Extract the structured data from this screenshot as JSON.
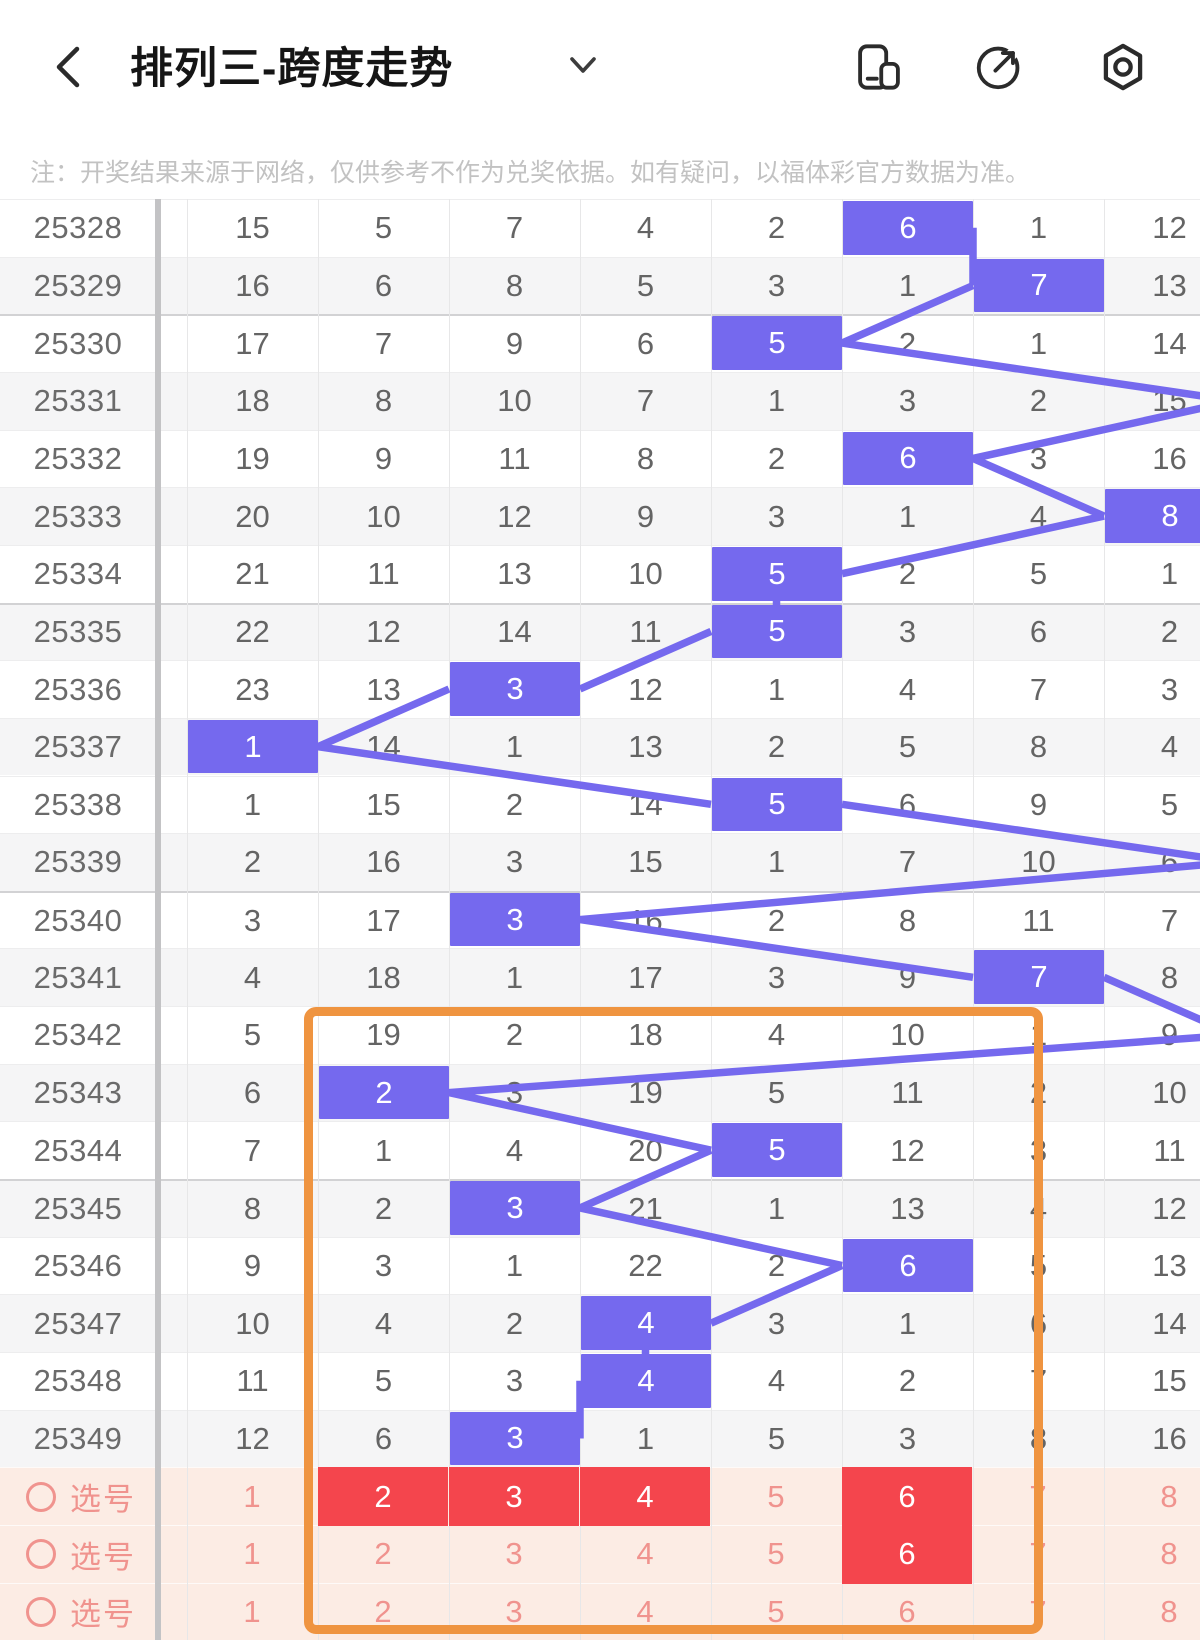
{
  "header": {
    "title": "排列三-跨度走势",
    "icons": [
      "back-icon",
      "dropdown-caret-icon",
      "floating-window-icon",
      "share-icon",
      "security-nut-icon"
    ]
  },
  "notice": {
    "text": "注：开奖结果来源于网络，仅供参考不作为兑奖依据。如有疑问，以福体彩官方数据为准。"
  },
  "chart_data": {
    "type": "table",
    "title": "排列三-跨度走势 (Pailie-3 span trend: miss counts per span column 1-8, highlighted cell = drawn span; span_col 9 means the hit is in the off-screen column to the right)",
    "visible_span_columns": [
      "1",
      "2",
      "3",
      "4",
      "5",
      "6",
      "7",
      "8"
    ],
    "rows": [
      {
        "period": "25328",
        "values": [
          15,
          5,
          7,
          4,
          2,
          6,
          1,
          12
        ],
        "span_col": 6
      },
      {
        "period": "25329",
        "values": [
          16,
          6,
          8,
          5,
          3,
          1,
          7,
          13
        ],
        "span_col": 7
      },
      {
        "period": "25330",
        "values": [
          17,
          7,
          9,
          6,
          5,
          2,
          1,
          14
        ],
        "span_col": 5
      },
      {
        "period": "25331",
        "values": [
          18,
          8,
          10,
          7,
          1,
          3,
          2,
          15
        ],
        "span_col": 9
      },
      {
        "period": "25332",
        "values": [
          19,
          9,
          11,
          8,
          2,
          6,
          3,
          16
        ],
        "span_col": 6
      },
      {
        "period": "25333",
        "values": [
          20,
          10,
          12,
          9,
          3,
          1,
          4,
          8
        ],
        "span_col": 8
      },
      {
        "period": "25334",
        "values": [
          21,
          11,
          13,
          10,
          5,
          2,
          5,
          1
        ],
        "span_col": 5
      },
      {
        "period": "25335",
        "values": [
          22,
          12,
          14,
          11,
          5,
          3,
          6,
          2
        ],
        "span_col": 5
      },
      {
        "period": "25336",
        "values": [
          23,
          13,
          3,
          12,
          1,
          4,
          7,
          3
        ],
        "span_col": 3
      },
      {
        "period": "25337",
        "values": [
          1,
          14,
          1,
          13,
          2,
          5,
          8,
          4
        ],
        "span_col": 1
      },
      {
        "period": "25338",
        "values": [
          1,
          15,
          2,
          14,
          5,
          6,
          9,
          5
        ],
        "span_col": 5
      },
      {
        "period": "25339",
        "values": [
          2,
          16,
          3,
          15,
          1,
          7,
          10,
          6
        ],
        "span_col": 9
      },
      {
        "period": "25340",
        "values": [
          3,
          17,
          3,
          16,
          2,
          8,
          11,
          7
        ],
        "span_col": 3
      },
      {
        "period": "25341",
        "values": [
          4,
          18,
          1,
          17,
          3,
          9,
          7,
          8
        ],
        "span_col": 7
      },
      {
        "period": "25342",
        "values": [
          5,
          19,
          2,
          18,
          4,
          10,
          1,
          9
        ],
        "span_col": 9
      },
      {
        "period": "25343",
        "values": [
          6,
          2,
          3,
          19,
          5,
          11,
          2,
          10
        ],
        "span_col": 2
      },
      {
        "period": "25344",
        "values": [
          7,
          1,
          4,
          20,
          5,
          12,
          3,
          11
        ],
        "span_col": 5
      },
      {
        "period": "25345",
        "values": [
          8,
          2,
          3,
          21,
          1,
          13,
          4,
          12
        ],
        "span_col": 3
      },
      {
        "period": "25346",
        "values": [
          9,
          3,
          1,
          22,
          2,
          6,
          5,
          13
        ],
        "span_col": 6
      },
      {
        "period": "25347",
        "values": [
          10,
          4,
          2,
          4,
          3,
          1,
          6,
          14
        ],
        "span_col": 4
      },
      {
        "period": "25348",
        "values": [
          11,
          5,
          3,
          4,
          4,
          2,
          7,
          15
        ],
        "span_col": 4
      },
      {
        "period": "25349",
        "values": [
          12,
          6,
          3,
          1,
          5,
          3,
          8,
          16
        ],
        "span_col": 3
      }
    ]
  },
  "selection": {
    "rows": [
      {
        "label": "选号",
        "values": [
          1,
          2,
          3,
          4,
          5,
          6,
          7,
          8
        ],
        "selected": [
          2,
          3,
          4,
          6
        ]
      },
      {
        "label": "选号",
        "values": [
          1,
          2,
          3,
          4,
          5,
          6,
          7,
          8
        ],
        "selected": [
          6
        ]
      },
      {
        "label": "选号",
        "values": [
          1,
          2,
          3,
          4,
          5,
          6,
          7,
          8
        ],
        "selected": []
      }
    ]
  },
  "annotation": {
    "shape": "highlight-rectangle",
    "color": "#EF9440"
  },
  "colors": {
    "highlight_purple": "#7569EE",
    "selection_red": "#F4454D",
    "selection_row_bg": "#FCECE4",
    "selection_text": "#F0938E",
    "annotation_orange": "#EF9440"
  }
}
